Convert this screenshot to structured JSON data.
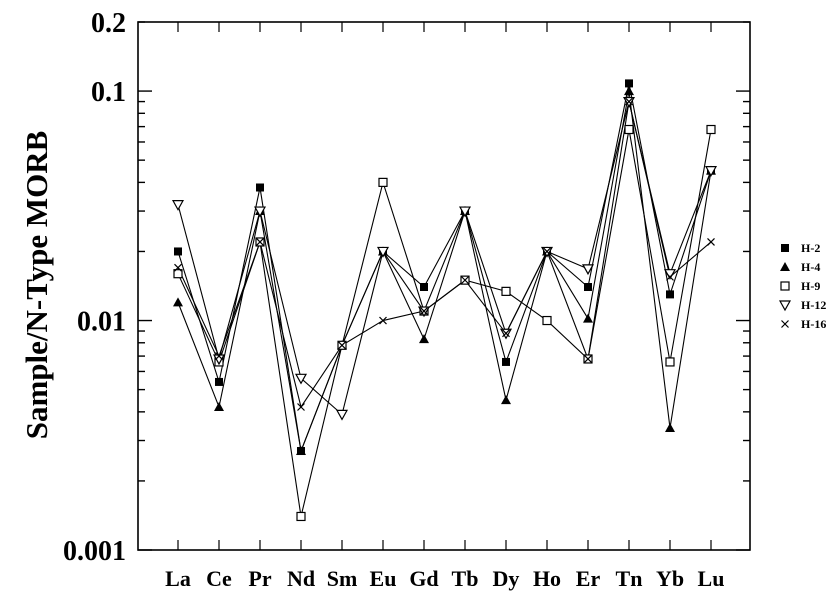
{
  "chart_data": {
    "type": "line",
    "title": "",
    "ylabel": "Sample/N-Type MORB",
    "xlabel": "",
    "yscale": "log",
    "ylim": [
      0.001,
      0.2
    ],
    "yticks": [
      {
        "value": 0.2,
        "label": "0.2"
      },
      {
        "value": 0.1,
        "label": "0.1"
      },
      {
        "value": 0.01,
        "label": "0.01"
      },
      {
        "value": 0.001,
        "label": "0.001"
      }
    ],
    "categories": [
      "La",
      "Ce",
      "Pr",
      "Nd",
      "Sm",
      "Eu",
      "Gd",
      "Tb",
      "Dy",
      "Ho",
      "Er",
      "Tn",
      "Yb",
      "Lu"
    ],
    "legend_position": "right",
    "series": [
      {
        "name": "H-2",
        "marker": "filled-square",
        "values": [
          0.02,
          0.0054,
          0.038,
          0.0027,
          0.0078,
          0.02,
          0.014,
          0.03,
          0.0066,
          0.02,
          0.014,
          0.108,
          0.013,
          0.045
        ]
      },
      {
        "name": "H-4",
        "marker": "filled-triangle",
        "values": [
          0.012,
          0.0042,
          0.03,
          0.0027,
          0.0078,
          0.02,
          0.0083,
          0.03,
          0.0045,
          0.02,
          0.0102,
          0.1,
          0.0034,
          0.045
        ]
      },
      {
        "name": "H-9",
        "marker": "open-square",
        "values": [
          0.016,
          0.0066,
          0.022,
          0.0014,
          0.0078,
          0.04,
          0.011,
          0.015,
          0.0134,
          0.01,
          0.0068,
          0.068,
          0.0066,
          0.068
        ]
      },
      {
        "name": "H-12",
        "marker": "open-triangle-down",
        "values": [
          0.032,
          0.0068,
          0.03,
          0.0056,
          0.0039,
          0.02,
          0.011,
          0.03,
          0.0088,
          0.02,
          0.0168,
          0.09,
          0.016,
          0.045
        ]
      },
      {
        "name": "H-16",
        "marker": "x",
        "values": [
          0.017,
          0.007,
          0.022,
          0.0042,
          0.0078,
          0.01,
          0.011,
          0.015,
          0.0088,
          0.02,
          0.0068,
          0.09,
          0.0155,
          0.022
        ]
      }
    ]
  }
}
